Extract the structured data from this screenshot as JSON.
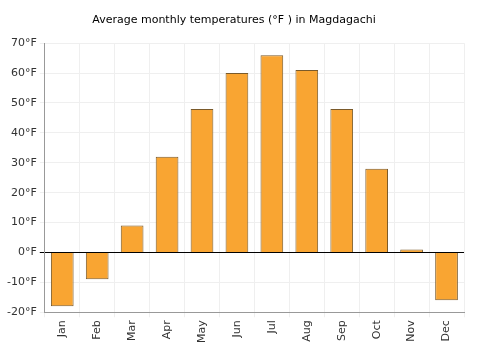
{
  "chart_data": {
    "type": "bar",
    "title": "Average monthly temperatures (°F ) in Magdagachi",
    "categories": [
      "Jan",
      "Feb",
      "Mar",
      "Apr",
      "May",
      "Jun",
      "Jul",
      "Aug",
      "Sep",
      "Oct",
      "Nov",
      "Dec"
    ],
    "values": [
      -18,
      -9,
      9,
      32,
      48,
      60,
      66,
      61,
      48,
      28,
      1,
      -16
    ],
    "color": "#f9a532",
    "ylim": [
      -20,
      70
    ],
    "yticks": [
      {
        "value": -20,
        "label": "-20°F"
      },
      {
        "value": -10,
        "label": "-10°F"
      },
      {
        "value": 0,
        "label": "0°F"
      },
      {
        "value": 10,
        "label": "10°F"
      },
      {
        "value": 20,
        "label": "20°F"
      },
      {
        "value": 30,
        "label": "30°F"
      },
      {
        "value": 40,
        "label": "40°F"
      },
      {
        "value": 50,
        "label": "50°F"
      },
      {
        "value": 60,
        "label": "60°F"
      },
      {
        "value": 70,
        "label": "70°F"
      }
    ],
    "grid": true
  }
}
